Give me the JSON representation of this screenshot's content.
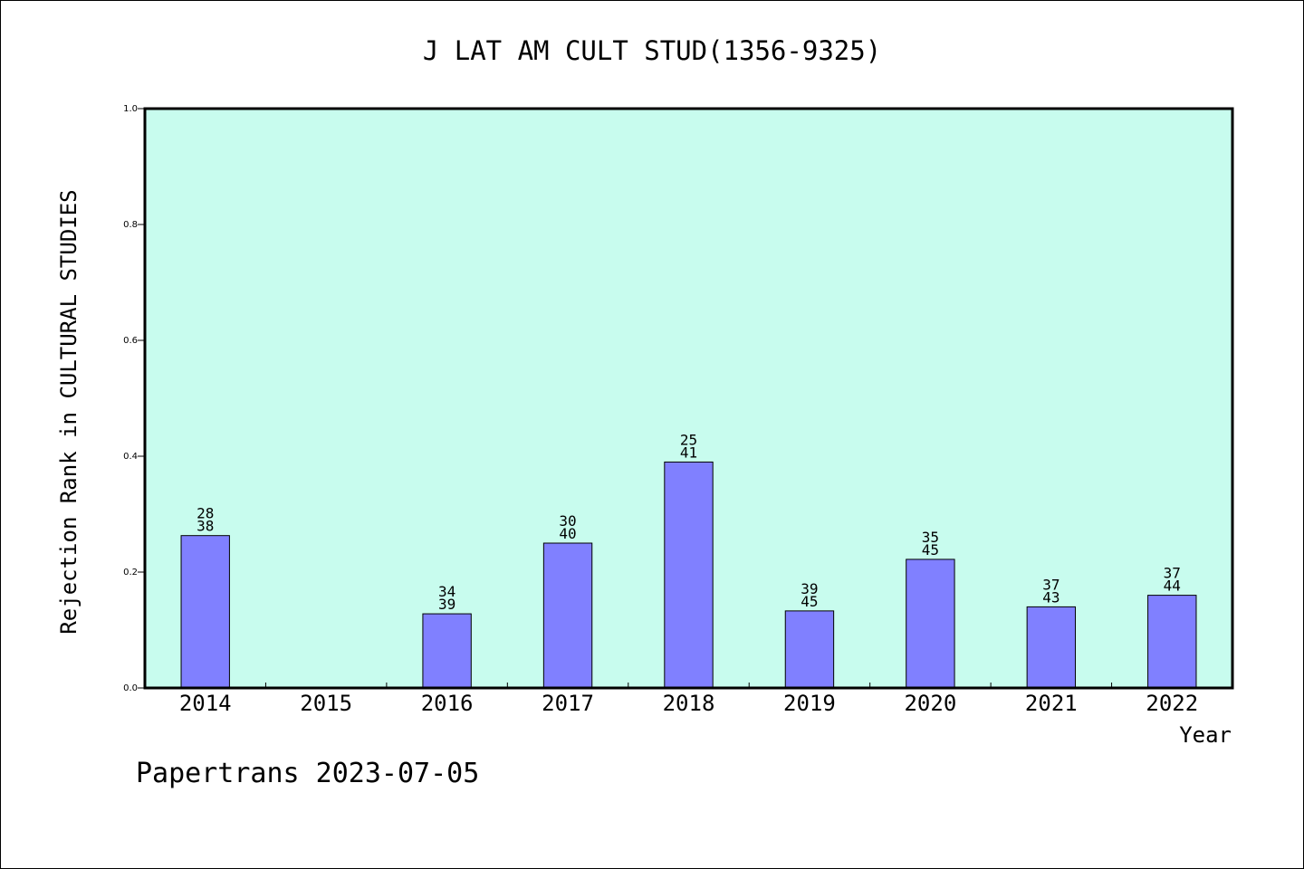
{
  "chart_data": {
    "type": "bar",
    "title": "J LAT AM CULT STUD(1356-9325)",
    "xlabel": "Year",
    "ylabel": "Rejection Rank in CULTURAL STUDIES",
    "categories": [
      "2014",
      "2015",
      "2016",
      "2017",
      "2018",
      "2019",
      "2020",
      "2021",
      "2022"
    ],
    "values": [
      0.263,
      null,
      0.128,
      0.25,
      0.39,
      0.133,
      0.222,
      0.14,
      0.16
    ],
    "rank_labels": [
      [
        "28",
        "38"
      ],
      null,
      [
        "34",
        "39"
      ],
      [
        "30",
        "40"
      ],
      [
        "25",
        "41"
      ],
      [
        "39",
        "45"
      ],
      [
        "35",
        "45"
      ],
      [
        "37",
        "43"
      ],
      [
        "37",
        "44"
      ]
    ],
    "yticks": [
      "0.0",
      "0.2",
      "0.4",
      "0.6",
      "0.8",
      "1.0"
    ],
    "ylim": [
      0,
      1
    ],
    "grid": false,
    "colors": {
      "plot_background": "#c8fcee",
      "bar_fill": "#8080ff",
      "bar_stroke": "#000000"
    }
  },
  "footer": {
    "text": "Papertrans 2023-07-05"
  }
}
